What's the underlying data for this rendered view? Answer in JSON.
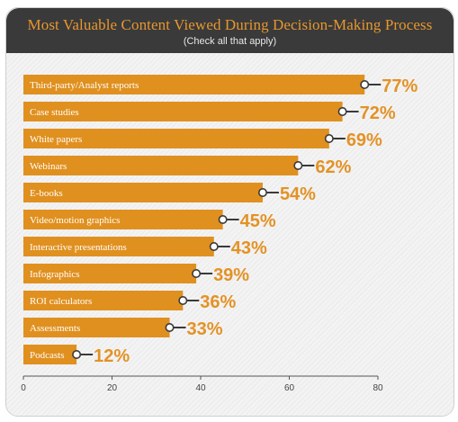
{
  "title": "Most Valuable Content Viewed During Decision-Making Process",
  "subtitle": "(Check all that apply)",
  "colors": {
    "bar": "#e0901f",
    "value_text": "#e39226",
    "header_bg": "#3a3a3a",
    "title_text": "#e8972e",
    "marker_stroke": "#3a3a3a",
    "axis": "#555555"
  },
  "chart_data": {
    "type": "bar",
    "orientation": "horizontal",
    "categories": [
      "Third-party/Analyst reports",
      "Case studies",
      "White papers",
      "Webinars",
      "E-books",
      "Video/motion graphics",
      "Interactive presentations",
      "Infographics",
      "ROI calculators",
      "Assessments",
      "Podcasts"
    ],
    "values": [
      77,
      72,
      69,
      62,
      54,
      45,
      43,
      39,
      36,
      33,
      12
    ],
    "value_labels": [
      "77%",
      "72%",
      "69%",
      "62%",
      "54%",
      "45%",
      "43%",
      "39%",
      "36%",
      "33%",
      "12%"
    ],
    "xlim": [
      0,
      80
    ],
    "xticks": [
      0,
      20,
      40,
      60,
      80
    ],
    "xtick_labels": [
      "0",
      "20",
      "40",
      "60",
      "80"
    ],
    "xlabel": "",
    "ylabel": "",
    "grid": false,
    "legend": "none"
  }
}
